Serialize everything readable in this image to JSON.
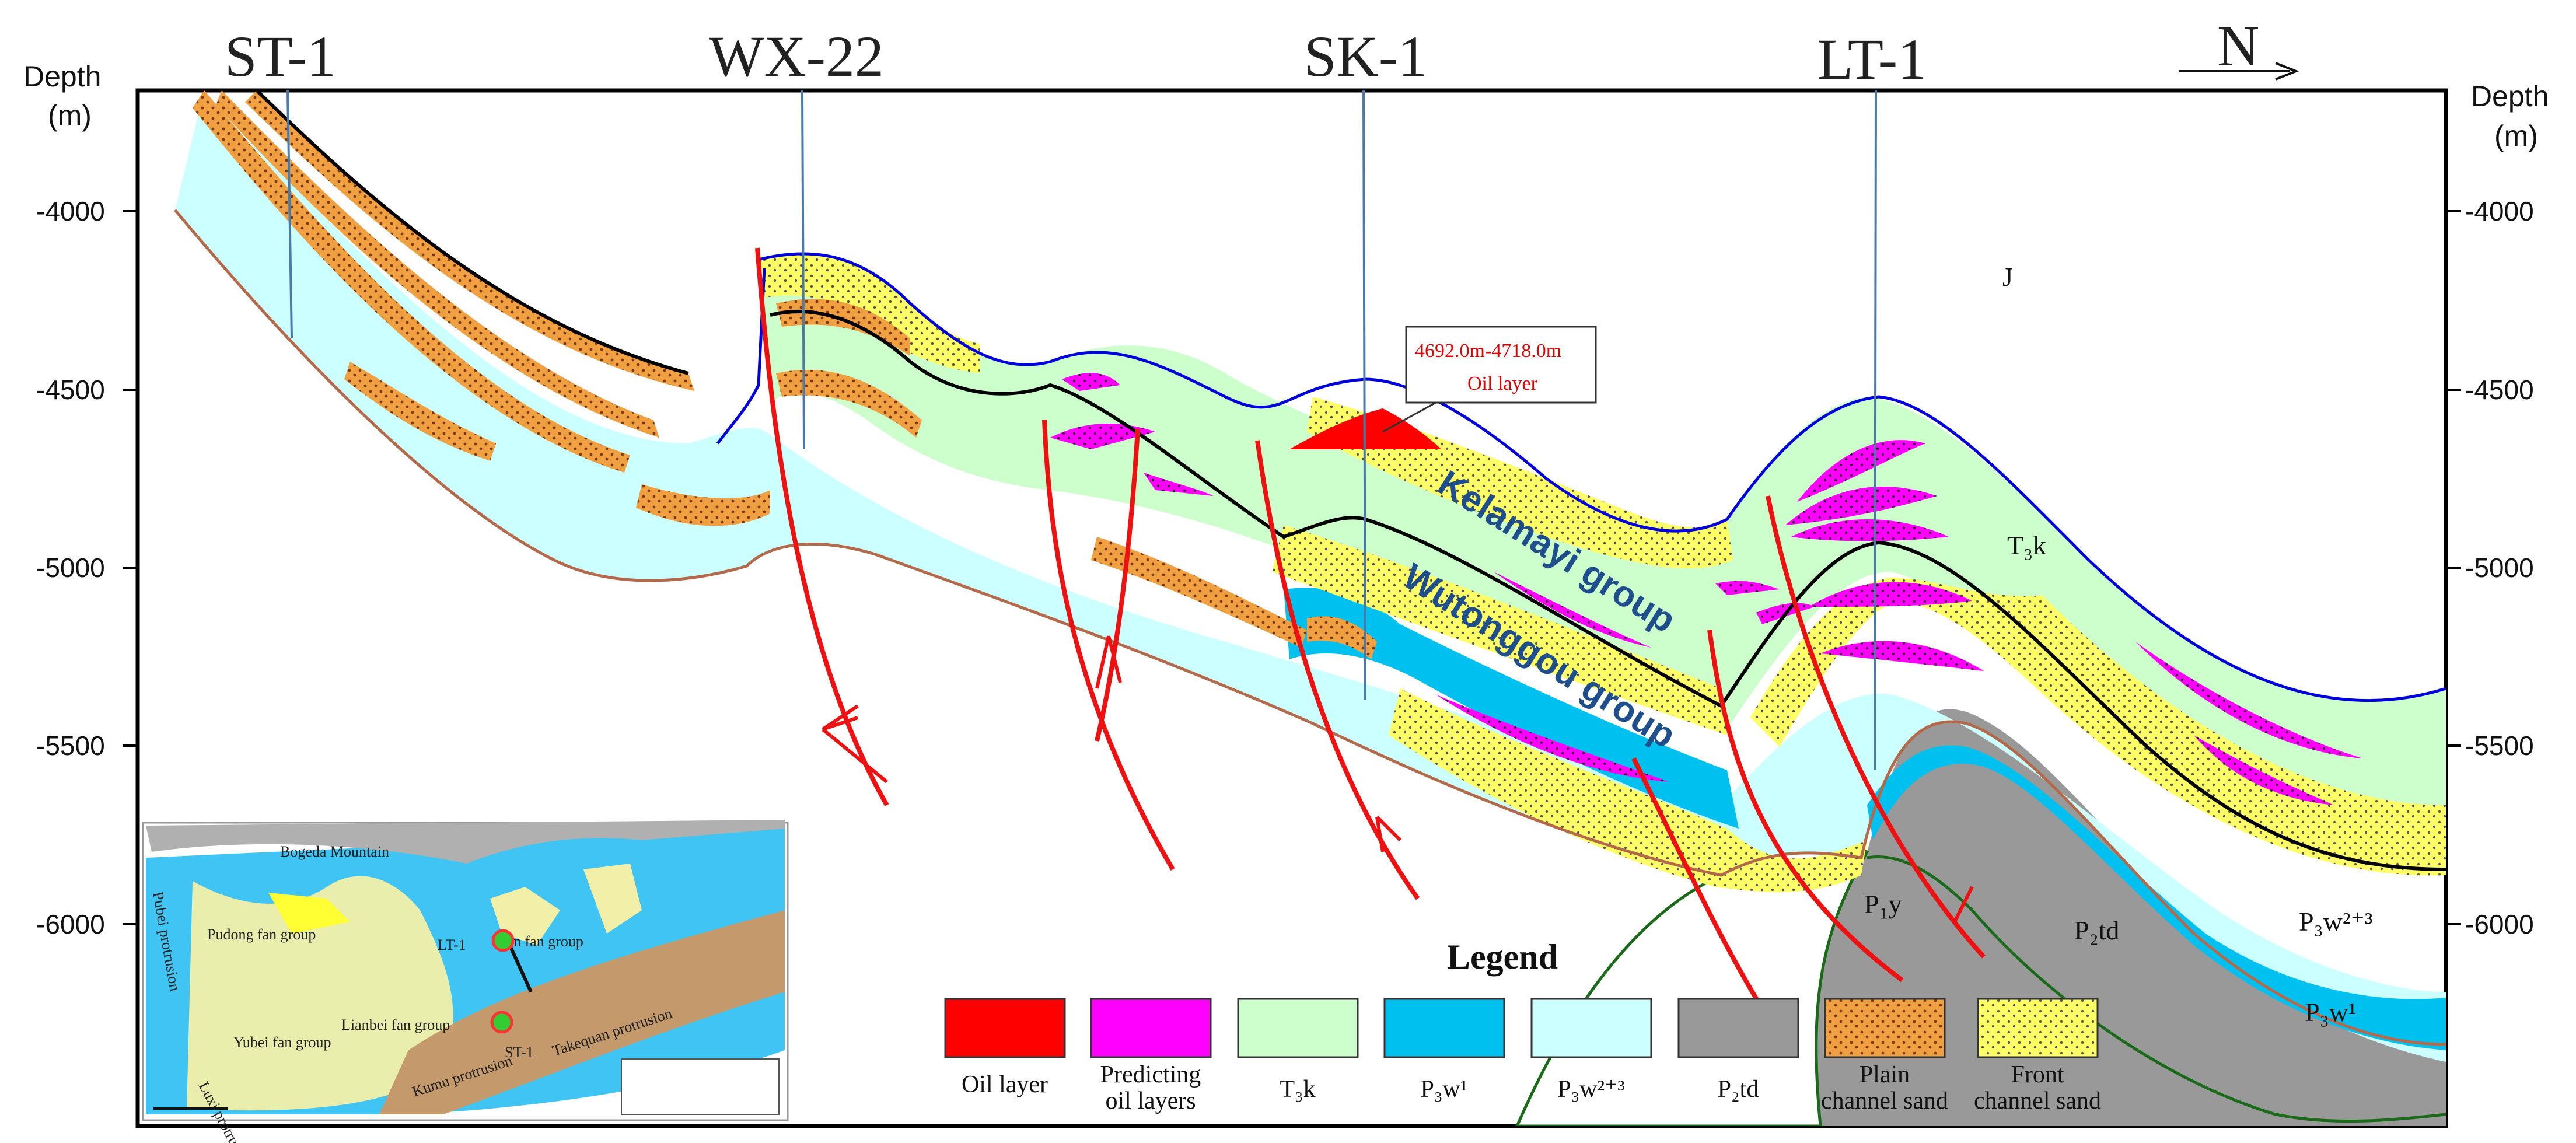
{
  "figure": {
    "wells": [
      "ST-1",
      "WX-22",
      "SK-1",
      "LT-1"
    ],
    "north_label": "N",
    "depth_axis": {
      "title_line1": "Depth",
      "title_line2": "(m)",
      "ticks": [
        "-4000",
        "-4500",
        "-5000",
        "-5500",
        "-6000"
      ]
    },
    "groups": {
      "kelamayi": "Kelamayi group",
      "wutonggou": "Wutonggou group"
    },
    "oil_callout": {
      "interval": "4692.0m-4718.0m",
      "type": "Oil layer"
    },
    "unit_labels": {
      "J": "J",
      "T3k": "T₃k",
      "P3w23": "P₃w²⁺³",
      "P3w1": "P₃w¹",
      "P1y": "P₁y",
      "P2td": "P₂td"
    },
    "legend": {
      "title": "Legend",
      "items": [
        {
          "line1": "Oil layer",
          "line2": "",
          "color": "#ff0000"
        },
        {
          "line1": "Predicting",
          "line2": "oil layers",
          "color": "#ff00ff"
        },
        {
          "line1": "T₃k",
          "line2": "",
          "color": "#ccffcc"
        },
        {
          "line1": "P₃w¹",
          "line2": "",
          "color": "#00c0f0"
        },
        {
          "line1": "P₃w²⁺³",
          "line2": "",
          "color": "#ccffff"
        },
        {
          "line1": "P₂td",
          "line2": "",
          "color": "#999999"
        },
        {
          "line1": "Plain",
          "line2": "channel sand",
          "color": "#f0a040"
        },
        {
          "line1": "Front",
          "line2": "channel sand",
          "color": "#ffff66"
        }
      ]
    },
    "inset_map": {
      "bogeda": "Bogeda Mountain",
      "pudong": "Pudong fan group",
      "lianbei": "Lianbei fan group",
      "yubei": "Yubei fan group",
      "north_fan": "n fan group",
      "lt1": "LT-1",
      "st1": "ST-1",
      "takequan": "Takequan protrusion",
      "kumu": "Kumu protrusion",
      "luxi": "Luxi protrusion",
      "pubei": "Pubei protrusion"
    }
  }
}
